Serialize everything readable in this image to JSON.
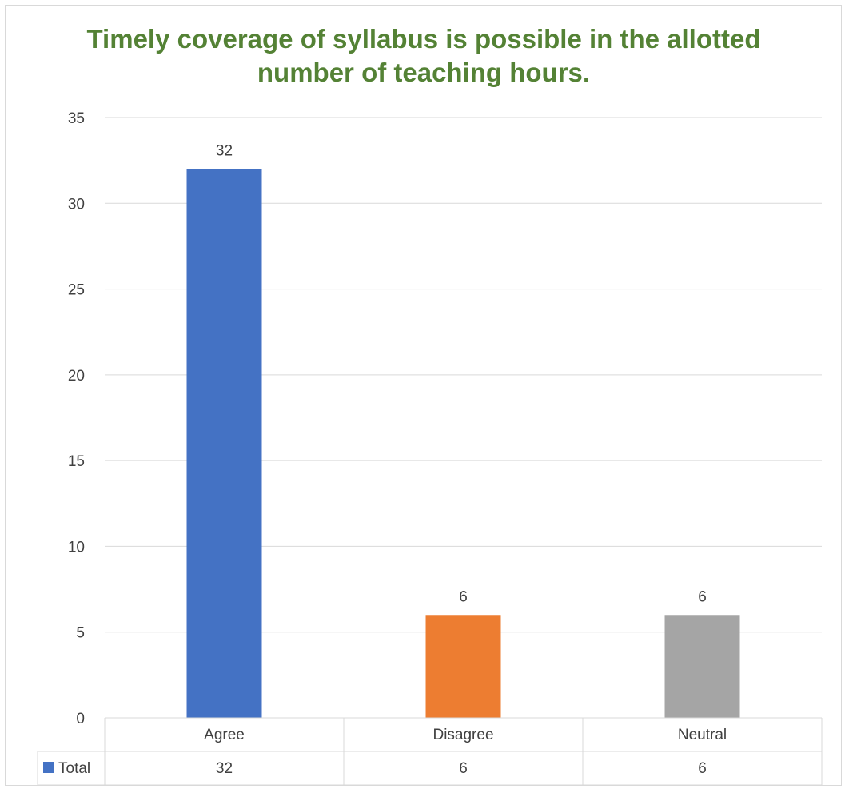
{
  "chart_data": {
    "type": "bar",
    "title_lines": [
      "Timely coverage of syllabus is possible in the allotted",
      "number of teaching hours."
    ],
    "categories": [
      "Agree",
      "Disagree",
      "Neutral"
    ],
    "series": [
      {
        "name": "Total",
        "values": [
          32,
          6,
          6
        ],
        "colors": [
          "#4472c4",
          "#ed7d31",
          "#a5a5a5"
        ]
      }
    ],
    "ylim": [
      0,
      35
    ],
    "yticks": [
      0,
      5,
      10,
      15,
      20,
      25,
      30,
      35
    ],
    "data_labels": [
      "32",
      "6",
      "6"
    ],
    "data_table": {
      "row_label": "Total",
      "legend_key_color": "#4472c4",
      "values": [
        "32",
        "6",
        "6"
      ]
    },
    "grid": true,
    "legend": "data-table",
    "title_color": "#548235"
  }
}
